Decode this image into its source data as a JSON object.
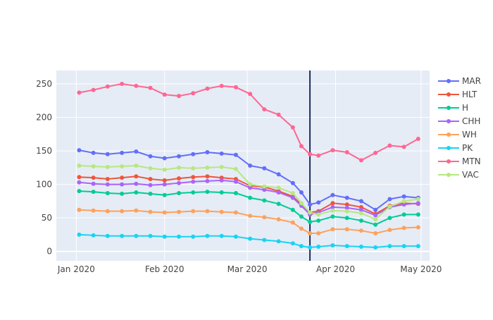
{
  "chart_data": {
    "type": "line",
    "title": "",
    "xlabel": "",
    "ylabel": "",
    "x_ticks": [
      {
        "date": "2020-01-01",
        "label": "Jan 2020"
      },
      {
        "date": "2020-02-01",
        "label": "Feb 2020"
      },
      {
        "date": "2020-03-01",
        "label": "Mar 2020"
      },
      {
        "date": "2020-04-01",
        "label": "Apr 2020"
      },
      {
        "date": "2020-05-01",
        "label": "May 2020"
      }
    ],
    "y_ticks": [
      0,
      50,
      100,
      150,
      200,
      250
    ],
    "xlim": [
      "2019-12-25",
      "2020-05-04"
    ],
    "ylim": [
      -14,
      270
    ],
    "grid": true,
    "legend_position": "right",
    "vertical_line": {
      "date": "2020-03-23",
      "color": "#1f2f5a"
    },
    "x": [
      "2020-01-02",
      "2020-01-07",
      "2020-01-12",
      "2020-01-17",
      "2020-01-22",
      "2020-01-27",
      "2020-02-01",
      "2020-02-06",
      "2020-02-11",
      "2020-02-16",
      "2020-02-21",
      "2020-02-26",
      "2020-03-02",
      "2020-03-07",
      "2020-03-12",
      "2020-03-17",
      "2020-03-20",
      "2020-03-23",
      "2020-03-26",
      "2020-03-31",
      "2020-04-05",
      "2020-04-10",
      "2020-04-15",
      "2020-04-20",
      "2020-04-25",
      "2020-04-30"
    ],
    "series": [
      {
        "name": "MAR",
        "color": "#636efa",
        "values": [
          151,
          147,
          145,
          147,
          149,
          142,
          139,
          142,
          145,
          148,
          146,
          144,
          128,
          124,
          115,
          102,
          88,
          70,
          73,
          84,
          80,
          75,
          62,
          78,
          82,
          80
        ]
      },
      {
        "name": "HLT",
        "color": "#ef553b",
        "values": [
          111,
          110,
          108,
          110,
          112,
          108,
          106,
          109,
          111,
          112,
          110,
          108,
          98,
          96,
          90,
          82,
          70,
          58,
          60,
          72,
          70,
          66,
          56,
          68,
          72,
          71
        ]
      },
      {
        "name": "H",
        "color": "#00cc96",
        "values": [
          90,
          89,
          87,
          86,
          88,
          86,
          84,
          87,
          88,
          89,
          88,
          87,
          80,
          76,
          71,
          62,
          52,
          44,
          46,
          52,
          50,
          46,
          40,
          50,
          55,
          55
        ]
      },
      {
        "name": "CHH",
        "color": "#ab63fa",
        "values": [
          103,
          101,
          100,
          100,
          101,
          99,
          100,
          102,
          104,
          105,
          106,
          104,
          95,
          92,
          88,
          80,
          68,
          55,
          58,
          66,
          65,
          62,
          54,
          66,
          70,
          72
        ]
      },
      {
        "name": "WH",
        "color": "#ffa15a",
        "values": [
          62,
          61,
          60,
          60,
          61,
          59,
          58,
          59,
          60,
          60,
          59,
          58,
          53,
          51,
          48,
          43,
          34,
          27,
          27,
          33,
          33,
          31,
          27,
          32,
          35,
          36
        ]
      },
      {
        "name": "PK",
        "color": "#19d3f3",
        "values": [
          25,
          24,
          23,
          23,
          23,
          23,
          22,
          22,
          22,
          23,
          23,
          22,
          19,
          17,
          15,
          12,
          8,
          6,
          7,
          9,
          8,
          7,
          6,
          8,
          8,
          8
        ]
      },
      {
        "name": "MTN",
        "color": "#ff6692",
        "values": [
          237,
          241,
          246,
          250,
          247,
          244,
          234,
          232,
          236,
          243,
          247,
          245,
          235,
          212,
          204,
          185,
          157,
          145,
          143,
          151,
          148,
          136,
          147,
          158,
          156,
          168
        ]
      },
      {
        "name": "VAC",
        "color": "#b6e880",
        "values": [
          128,
          127,
          126,
          127,
          128,
          124,
          122,
          125,
          124,
          125,
          126,
          123,
          100,
          97,
          95,
          87,
          72,
          58,
          55,
          61,
          60,
          57,
          48,
          67,
          75,
          78
        ]
      }
    ]
  }
}
